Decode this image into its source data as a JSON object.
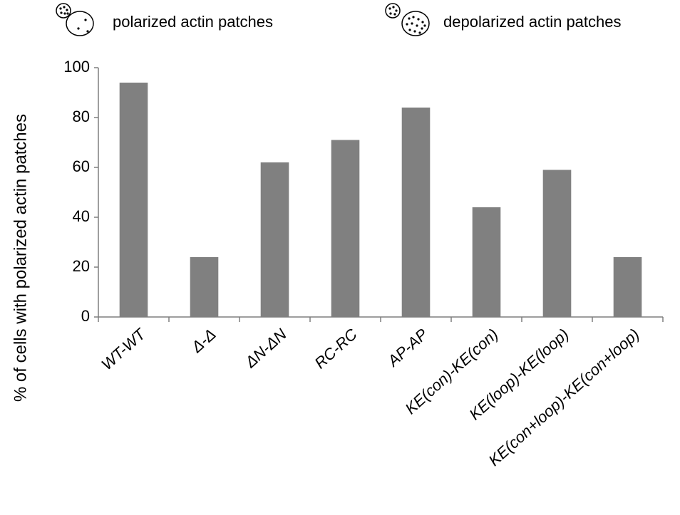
{
  "chart_data": {
    "type": "bar",
    "y_label": "% of  cells with polarized actin patches",
    "annotations": [
      "polarized actin patches",
      "depolarized actin patches"
    ],
    "categories": [
      "WT-WT",
      "Δ-Δ",
      "ΔN-ΔN",
      "RC-RC",
      "AP-AP",
      "KE(con)-KE(con)",
      "KE(loop)-KE(loop)",
      "KE(con+loop)-KE(con+loop)"
    ],
    "values": [
      94,
      24,
      62,
      71,
      84,
      44,
      59,
      24
    ],
    "color": "#808080",
    "ylim": [
      0,
      100
    ],
    "yticks": [
      0,
      20,
      40,
      60,
      80,
      100
    ],
    "grid": false
  }
}
